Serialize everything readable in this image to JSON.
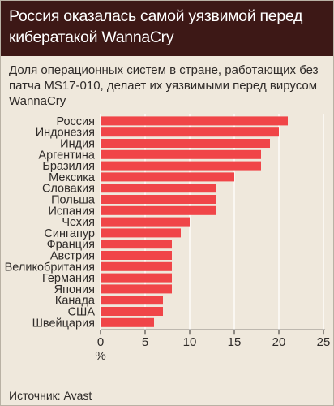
{
  "header": {
    "title": "Россия оказалась самой уязвимой перед кибератакой WannaCry"
  },
  "subtitle": "Доля операционных систем в стране, работающих без патча MS17-010, делает их уязвимыми перед вирусом WannaCry",
  "source": "Источник: Avast",
  "colors": {
    "bar": "#f04548",
    "header_bg": "#3d1816",
    "background": "#efe8dc",
    "grid": "#ffffff",
    "text": "#2e2a28"
  },
  "chart_data": {
    "type": "bar",
    "orientation": "horizontal",
    "categories": [
      "Россия",
      "Индонезия",
      "Индия",
      "Аргентина",
      "Бразилия",
      "Мексика",
      "Словакия",
      "Польша",
      "Испания",
      "Чехия",
      "Сингапур",
      "Франция",
      "Австрия",
      "Великобритания",
      "Германия",
      "Япония",
      "Канада",
      "США",
      "Швейцария"
    ],
    "values": [
      21,
      20,
      19,
      18,
      18,
      15,
      13,
      13,
      13,
      10,
      9,
      8,
      8,
      8,
      8,
      8,
      7,
      7,
      6
    ],
    "xlim": [
      0,
      25
    ],
    "xticks": [
      0,
      5,
      10,
      15,
      20,
      25
    ],
    "xticklabels": [
      "0",
      "5",
      "10",
      "15",
      "20",
      "25"
    ],
    "xunit": "%",
    "grid": true
  }
}
